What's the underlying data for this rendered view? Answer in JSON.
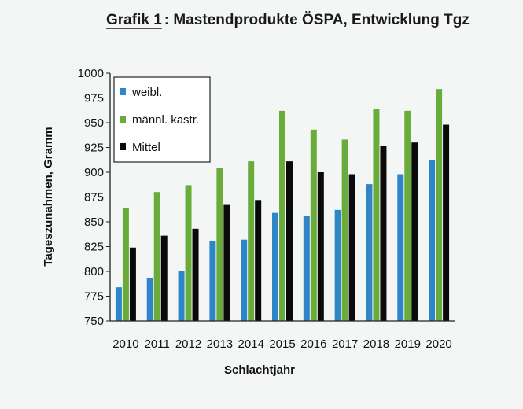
{
  "chart_data": {
    "type": "bar",
    "title_prefix": "Grafik 1",
    "title_rest": ": Mastendprodukte ÖSPA, Entwicklung Tgz",
    "xlabel": "Schlachtjahr",
    "ylabel": "Tageszunahmen, Gramm",
    "ylim": [
      750,
      1000
    ],
    "yticks": [
      "750",
      "775",
      "800",
      "825",
      "850",
      "875",
      "900",
      "925",
      "950",
      "975",
      "1000"
    ],
    "categories": [
      "2010",
      "2011",
      "2012",
      "2013",
      "2014",
      "2015",
      "2016",
      "2017",
      "2018",
      "2019",
      "2020"
    ],
    "series": [
      {
        "name": "weibl.",
        "color": "#2e86c8",
        "values": [
          784,
          793,
          800,
          831,
          832,
          859,
          856,
          862,
          888,
          898,
          912
        ]
      },
      {
        "name": "männl. kastr.",
        "color": "#6aac3c",
        "values": [
          864,
          880,
          887,
          904,
          911,
          962,
          943,
          933,
          964,
          962,
          984
        ]
      },
      {
        "name": "Mittel",
        "color": "#0a0a0a",
        "values": [
          824,
          836,
          843,
          867,
          872,
          911,
          900,
          898,
          927,
          930,
          948
        ]
      }
    ],
    "legend_position": "top-left",
    "grid": false
  }
}
